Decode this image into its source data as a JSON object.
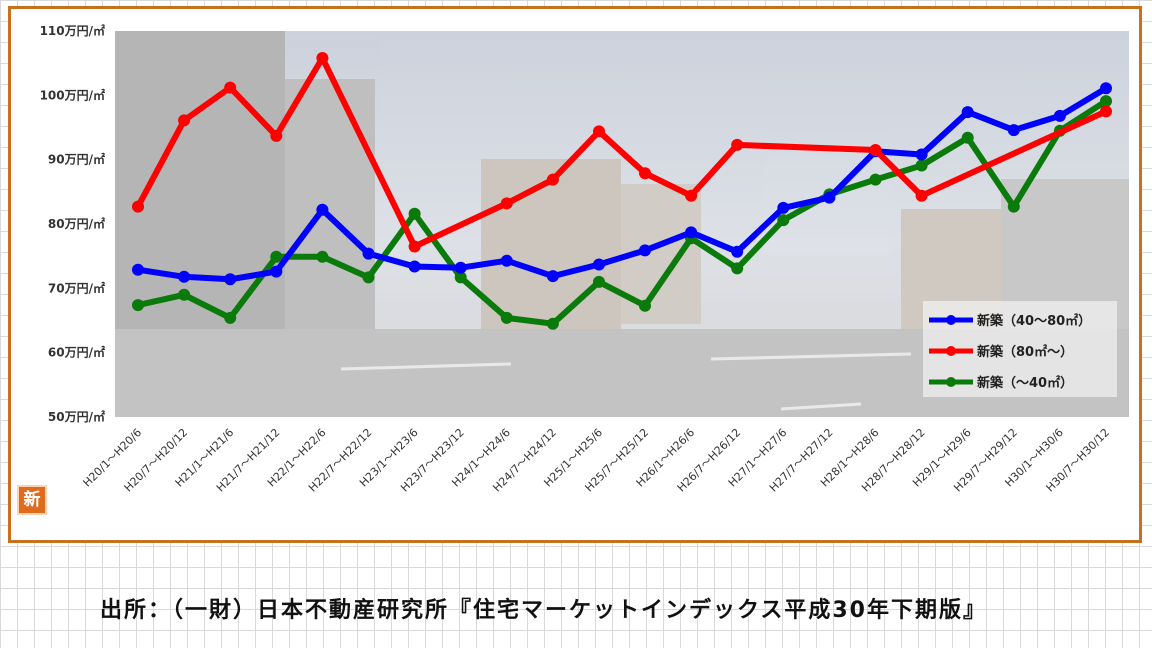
{
  "chart_data": {
    "type": "line",
    "categories": [
      "H20/1～H20/6",
      "H20/7～H20/12",
      "H21/1～H21/6",
      "H21/7～H21/12",
      "H22/1～H22/6",
      "H22/7～H22/12",
      "H23/1～H23/6",
      "H23/7～H23/12",
      "H24/1～H24/6",
      "H24/7～H24/12",
      "H25/1～H25/6",
      "H25/7～H25/12",
      "H26/1～H26/6",
      "H26/7～H26/12",
      "H27/1～H27/6",
      "H27/7～H27/12",
      "H28/1～H28/6",
      "H28/7～H28/12",
      "H29/1～H29/6",
      "H29/7～H29/12",
      "H30/1～H30/6",
      "H30/7～H30/12"
    ],
    "yticks": [
      "50万円/㎡",
      "60万円/㎡",
      "70万円/㎡",
      "80万円/㎡",
      "90万円/㎡",
      "100万円/㎡",
      "110万円/㎡"
    ],
    "ylim": [
      50,
      110
    ],
    "grid": false,
    "legend_position": "right",
    "series": [
      {
        "name": "新築（40～80㎡）",
        "color": "#0000ff",
        "values": [
          72.9,
          71.8,
          71.4,
          72.6,
          82.2,
          75.4,
          73.4,
          73.2,
          74.3,
          71.9,
          73.7,
          75.9,
          78.7,
          75.7,
          82.5,
          84.1,
          91.3,
          90.8,
          97.4,
          94.6,
          96.8,
          101.1
        ]
      },
      {
        "name": "新築（80㎡～）",
        "color": "#ff0000",
        "values": [
          82.7,
          96.1,
          101.2,
          93.7,
          105.8,
          null,
          76.5,
          null,
          83.2,
          86.9,
          94.4,
          87.9,
          84.4,
          92.3,
          null,
          null,
          91.5,
          84.4,
          null,
          null,
          null,
          97.5
        ]
      },
      {
        "name": "新築（～40㎡）",
        "color": "#0a7a0a",
        "values": [
          67.4,
          69.0,
          65.4,
          74.9,
          74.9,
          71.7,
          81.6,
          71.7,
          65.4,
          64.5,
          71.0,
          67.3,
          77.8,
          73.1,
          80.6,
          84.6,
          86.9,
          89.1,
          93.4,
          82.7,
          94.5,
          99.1
        ]
      }
    ]
  },
  "badge": {
    "label": "新"
  },
  "source": {
    "text": "出所：（一財）日本不動産研究所『住宅マーケットインデックス平成30年下期版』"
  }
}
